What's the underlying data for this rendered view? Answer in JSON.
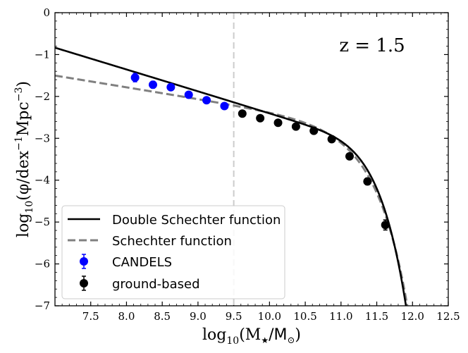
{
  "chart_data": {
    "type": "scatter",
    "xlabel_main": "log",
    "xlabel_sub": "10",
    "xlabel_rest": "(M",
    "xlabel_star": "★",
    "xlabel_unit": "/M",
    "xlabel_sun": "⊙",
    "xlabel_close": ")",
    "ylabel_main": "log",
    "ylabel_sub": "10",
    "ylabel_rest": "(φ/dex",
    "ylabel_sup1": "−1",
    "ylabel_mid": "Mpc",
    "ylabel_sup2": "−3",
    "ylabel_close": ")",
    "annotation": "z = 1.5",
    "xlim": [
      7.0,
      12.5
    ],
    "ylim": [
      -7,
      0
    ],
    "xticks": [
      "7.5",
      "8.0",
      "8.5",
      "9.0",
      "9.5",
      "10.0",
      "10.5",
      "11.0",
      "11.5",
      "12.0",
      "12.5"
    ],
    "yticks": [
      "0",
      "−1",
      "−2",
      "−3",
      "−4",
      "−5",
      "−6",
      "−7"
    ],
    "vline_x": 9.5,
    "legend": [
      {
        "label": "Double Schechter function",
        "style": "solid",
        "color": "#000000"
      },
      {
        "label": "Schechter function",
        "style": "dashed",
        "color": "#808080"
      },
      {
        "label": "CANDELS",
        "style": "marker",
        "color": "#0000ff"
      },
      {
        "label": "ground-based",
        "style": "marker",
        "color": "#000000"
      }
    ],
    "series": [
      {
        "name": "CANDELS",
        "color": "#0000ff",
        "x": [
          8.12,
          8.37,
          8.62,
          8.87,
          9.12,
          9.37
        ],
        "y": [
          -1.55,
          -1.72,
          -1.78,
          -1.96,
          -2.09,
          -2.23
        ],
        "yerr": [
          0.1,
          0.08,
          0.06,
          0.05,
          0.05,
          0.05
        ]
      },
      {
        "name": "ground-based",
        "color": "#000000",
        "x": [
          9.62,
          9.87,
          10.12,
          10.37,
          10.62,
          10.87,
          11.12,
          11.37,
          11.62
        ],
        "y": [
          -2.41,
          -2.52,
          -2.63,
          -2.72,
          -2.82,
          -3.02,
          -3.43,
          -4.03,
          -5.07
        ],
        "yerr": [
          0.04,
          0.04,
          0.04,
          0.04,
          0.04,
          0.05,
          0.06,
          0.08,
          0.12
        ]
      }
    ],
    "double_schechter": {
      "log_mstar": 10.85,
      "log_phi1": -3.1,
      "alpha1": -0.35,
      "log_phi2": -3.2,
      "alpha2": -1.52
    },
    "single_schechter": {
      "log_mstar": 10.95,
      "log_phi": -2.97,
      "alpha": -1.28
    }
  }
}
